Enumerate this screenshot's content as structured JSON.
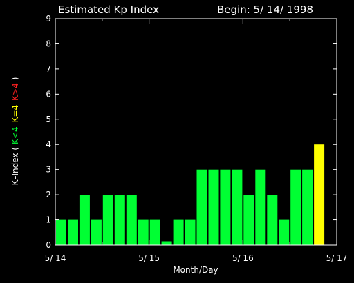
{
  "chart_data": {
    "type": "bar",
    "title": "Estimated Kp Index",
    "begin_label": "Begin: 5/ 14/ 1998",
    "xlabel": "Month/Day",
    "ylabel": {
      "prefix": "K–Index (",
      "low": "K<4",
      "mid": "K=4",
      "high": "K>4",
      "suffix": ")"
    },
    "ylim": [
      0,
      9
    ],
    "yticks": [
      0,
      1,
      2,
      3,
      4,
      5,
      6,
      7,
      8,
      9
    ],
    "x_ticks": [
      "5/ 14",
      "5/ 15",
      "5/ 16",
      "5/ 17"
    ],
    "interval_hours": 3,
    "grid": false,
    "colors": {
      "low": "#00ff33",
      "mid": "#ffff00",
      "high": "#ff2020",
      "axis": "#ffffff",
      "background": "#000000"
    },
    "values": [
      1,
      1,
      2,
      1,
      2,
      2,
      2,
      1,
      1,
      0.15,
      1,
      1,
      3,
      3,
      3,
      3,
      2,
      3,
      2,
      1,
      3,
      3,
      4
    ]
  }
}
